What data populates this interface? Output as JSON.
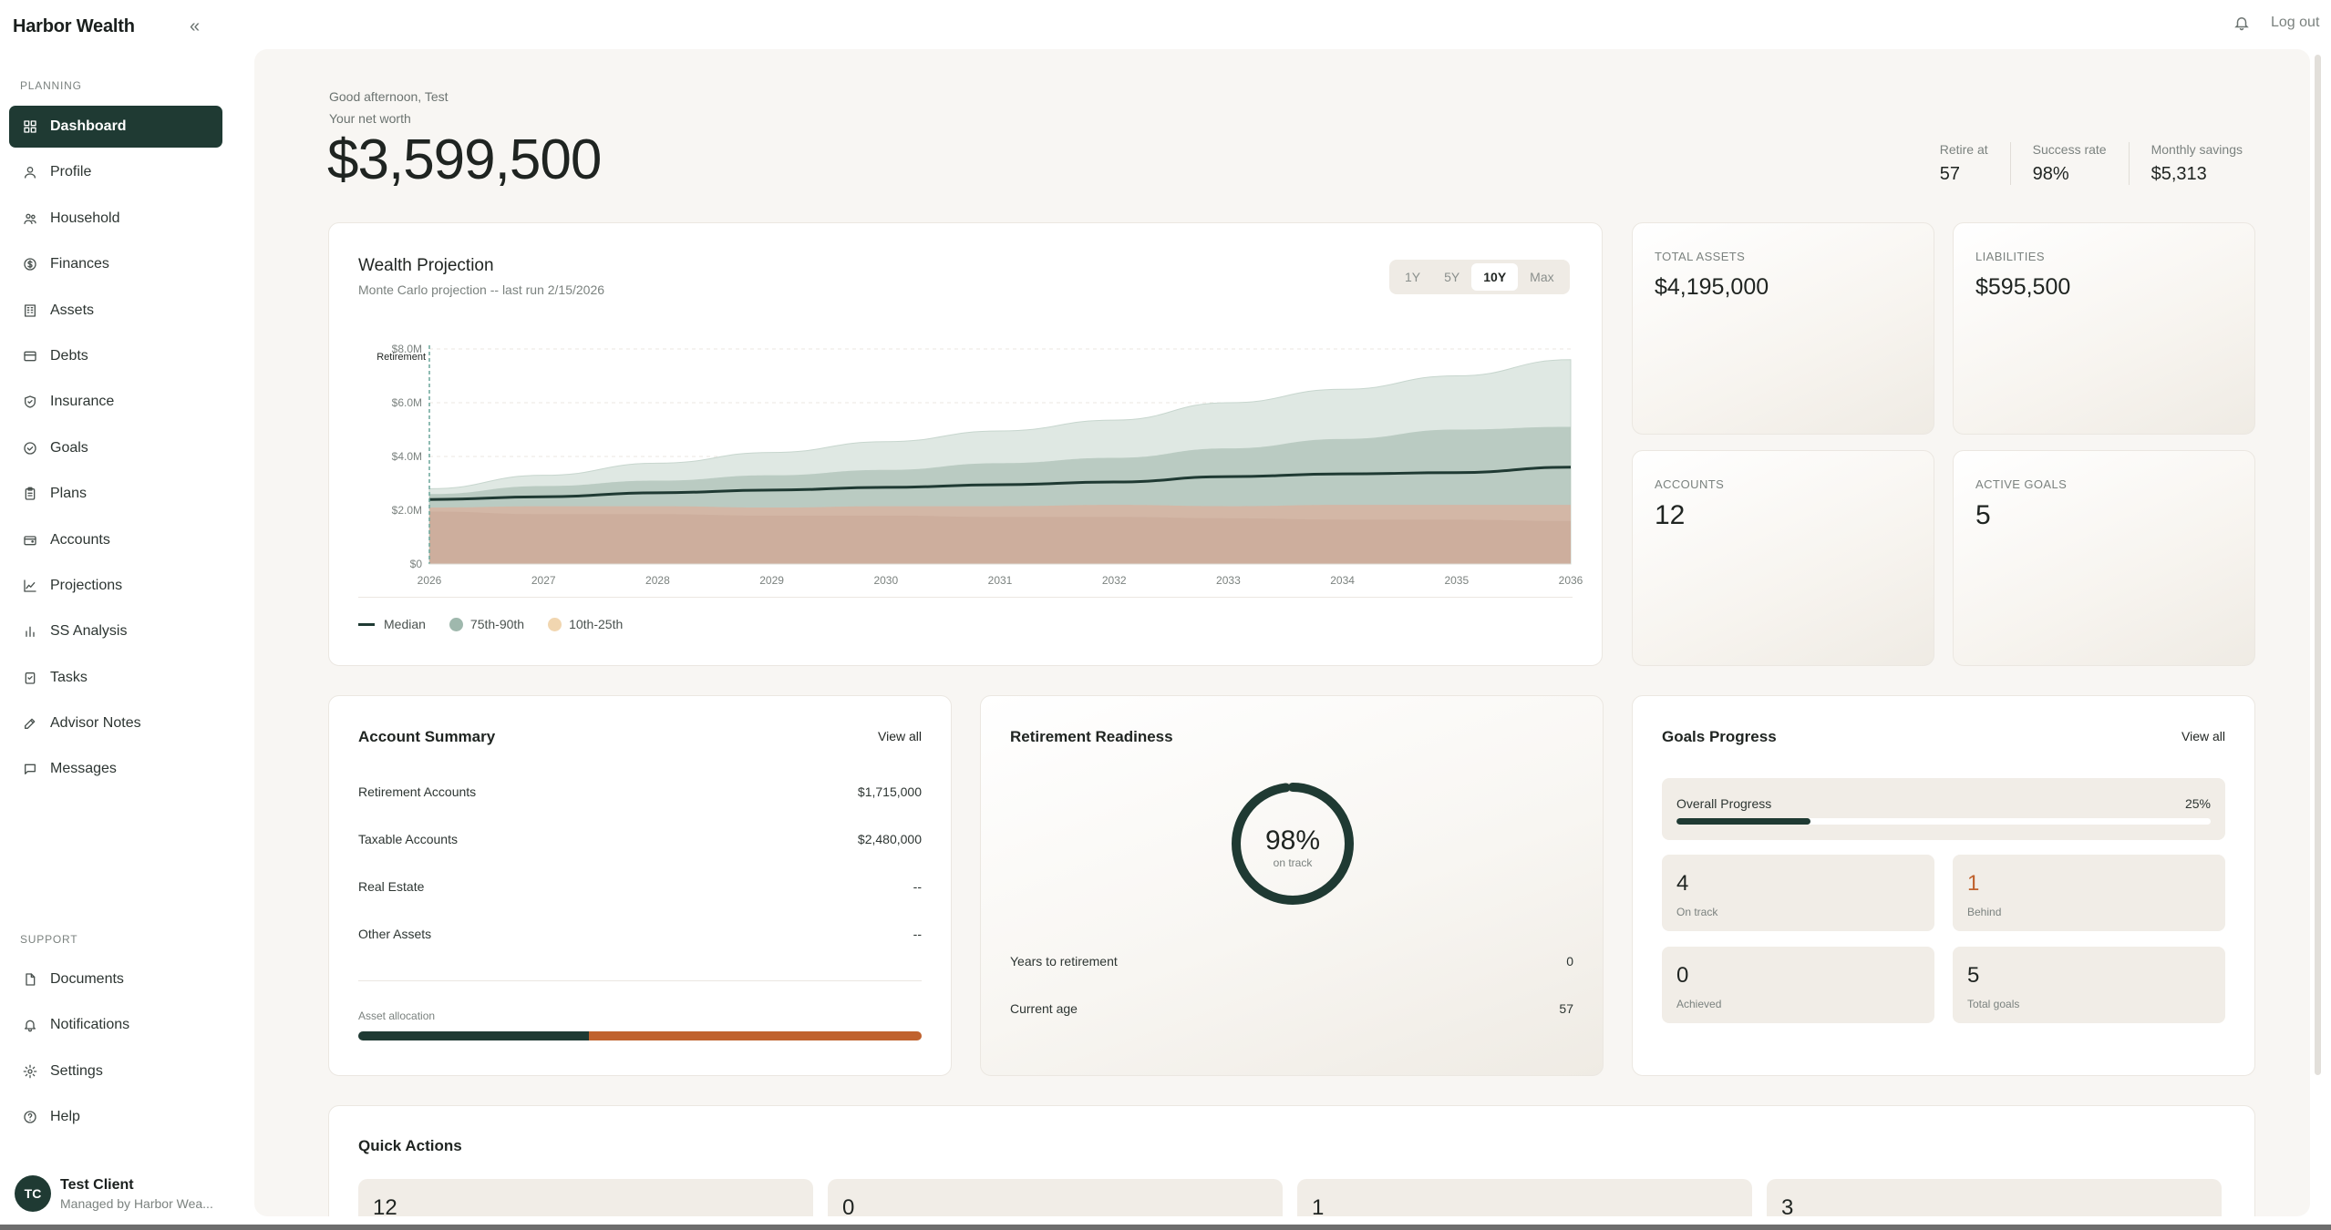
{
  "app": {
    "brand": "Harbor Wealth",
    "logout_label": "Log out"
  },
  "sidebar": {
    "planning_label": "PLANNING",
    "support_label": "SUPPORT",
    "planning_items": [
      {
        "label": "Dashboard",
        "icon": "dashboard-icon"
      },
      {
        "label": "Profile",
        "icon": "user-icon"
      },
      {
        "label": "Household",
        "icon": "users-icon"
      },
      {
        "label": "Finances",
        "icon": "dollar-icon"
      },
      {
        "label": "Assets",
        "icon": "building-icon"
      },
      {
        "label": "Debts",
        "icon": "credit-card-icon"
      },
      {
        "label": "Insurance",
        "icon": "shield-icon"
      },
      {
        "label": "Goals",
        "icon": "check-circle-icon"
      },
      {
        "label": "Plans",
        "icon": "clipboard-icon"
      },
      {
        "label": "Accounts",
        "icon": "wallet-icon"
      },
      {
        "label": "Projections",
        "icon": "trend-icon"
      },
      {
        "label": "SS Analysis",
        "icon": "bar-chart-icon"
      },
      {
        "label": "Tasks",
        "icon": "task-icon"
      },
      {
        "label": "Advisor Notes",
        "icon": "edit-icon"
      },
      {
        "label": "Messages",
        "icon": "message-icon"
      }
    ],
    "support_items": [
      {
        "label": "Documents",
        "icon": "document-icon"
      },
      {
        "label": "Notifications",
        "icon": "bell-icon"
      },
      {
        "label": "Settings",
        "icon": "gear-icon"
      },
      {
        "label": "Help",
        "icon": "help-icon"
      }
    ],
    "user": {
      "initials": "TC",
      "name": "Test Client",
      "subtitle": "Managed by Harbor Wea..."
    }
  },
  "header": {
    "greeting": "Good afternoon, Test",
    "net_worth_label": "Your net worth",
    "net_worth": "$3,599,500",
    "stats": [
      {
        "label": "Retire at",
        "value": "57"
      },
      {
        "label": "Success rate",
        "value": "98%"
      },
      {
        "label": "Monthly savings",
        "value": "$5,313"
      }
    ]
  },
  "projection": {
    "title": "Wealth Projection",
    "subtitle": "Monte Carlo projection -- last run 2/15/2026",
    "ranges": [
      "1Y",
      "5Y",
      "10Y",
      "Max"
    ],
    "active_range": "10Y",
    "retirement_marker_label": "Retirement",
    "legend": [
      {
        "name": "Median",
        "color": "#1f3a33"
      },
      {
        "name": "75th-90th",
        "color": "#9fb8ad"
      },
      {
        "name": "10th-25th",
        "color": "#f1d6b0"
      }
    ]
  },
  "chart_data": {
    "type": "area",
    "x": [
      "2026",
      "2027",
      "2028",
      "2029",
      "2030",
      "2031",
      "2032",
      "2033",
      "2034",
      "2035",
      "2036"
    ],
    "y_ticks": [
      "$0",
      "$2.0M",
      "$4.0M",
      "$6.0M",
      "$8.0M"
    ],
    "ylim": [
      0,
      8000000
    ],
    "series": [
      {
        "name": "Median",
        "values": [
          2400000,
          2500000,
          2650000,
          2750000,
          2850000,
          2950000,
          3050000,
          3250000,
          3350000,
          3400000,
          3600000
        ]
      },
      {
        "name": "75th-90th",
        "upper": [
          2800000,
          3300000,
          3750000,
          4150000,
          4550000,
          4950000,
          5350000,
          6000000,
          6500000,
          7000000,
          7600000
        ],
        "lower": [
          2600000,
          2900000,
          3100000,
          3300000,
          3500000,
          3750000,
          3950000,
          4300000,
          4650000,
          5000000,
          5100000
        ]
      },
      {
        "name": "10th-25th",
        "upper": [
          2100000,
          2150000,
          2150000,
          2100000,
          2150000,
          2150000,
          2200000,
          2150000,
          2200000,
          2200000,
          2200000
        ],
        "lower": [
          1950000,
          1850000,
          1850000,
          1800000,
          1800000,
          1750000,
          1750000,
          1700000,
          1650000,
          1650000,
          1600000
        ]
      }
    ],
    "grid": true,
    "legend_position": "bottom-left"
  },
  "kpis": [
    {
      "label": "TOTAL ASSETS",
      "value": "$4,195,000"
    },
    {
      "label": "LIABILITIES",
      "value": "$595,500"
    },
    {
      "label": "ACCOUNTS",
      "value": "12"
    },
    {
      "label": "ACTIVE GOALS",
      "value": "5"
    }
  ],
  "account_summary": {
    "title": "Account Summary",
    "view_all": "View all",
    "rows": [
      {
        "label": "Retirement Accounts",
        "value": "$1,715,000"
      },
      {
        "label": "Taxable Accounts",
        "value": "$2,480,000"
      },
      {
        "label": "Real Estate",
        "value": "--"
      },
      {
        "label": "Other Assets",
        "value": "--"
      }
    ],
    "allocation_label": "Asset allocation",
    "allocation": [
      {
        "name": "Retirement Accounts",
        "fraction": 0.409,
        "color": "#1f3a33"
      },
      {
        "name": "Taxable Accounts",
        "fraction": 0.591,
        "color": "#c0622e"
      }
    ]
  },
  "retirement": {
    "title": "Retirement Readiness",
    "percent": "98%",
    "percent_value": 98,
    "status": "on track",
    "rows": [
      {
        "label": "Years to retirement",
        "value": "0"
      },
      {
        "label": "Current age",
        "value": "57"
      }
    ]
  },
  "goals": {
    "title": "Goals Progress",
    "view_all": "View all",
    "overall_label": "Overall Progress",
    "overall_pct": "25%",
    "overall_value": 25,
    "tiles": [
      {
        "value": "4",
        "label": "On track"
      },
      {
        "value": "1",
        "label": "Behind"
      },
      {
        "value": "0",
        "label": "Achieved"
      },
      {
        "value": "5",
        "label": "Total goals"
      }
    ]
  },
  "quick_actions": {
    "title": "Quick Actions",
    "tiles": [
      {
        "value": "12"
      },
      {
        "value": "0"
      },
      {
        "value": "1"
      },
      {
        "value": "3"
      }
    ]
  }
}
